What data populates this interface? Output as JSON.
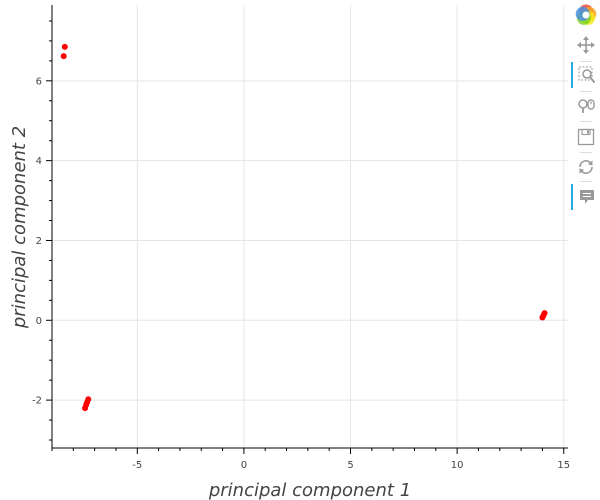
{
  "chart_data": {
    "type": "scatter",
    "xlabel": "principal component 1",
    "ylabel": "principal component 2",
    "xlim": [
      -9.0,
      15.2
    ],
    "ylim": [
      -3.2,
      7.9
    ],
    "xticks": [
      -5,
      0,
      5,
      10,
      15
    ],
    "yticks": [
      -2,
      0,
      2,
      4,
      6
    ],
    "grid": true,
    "point_color": "#ff0000",
    "points": [
      {
        "x": -8.4,
        "y": 6.85
      },
      {
        "x": -8.45,
        "y": 6.62
      },
      {
        "x": -7.3,
        "y": -1.98
      },
      {
        "x": -7.35,
        "y": -2.05
      },
      {
        "x": -7.4,
        "y": -2.12
      },
      {
        "x": -7.45,
        "y": -2.2
      },
      {
        "x": 14.1,
        "y": 0.18
      },
      {
        "x": 14.05,
        "y": 0.12
      },
      {
        "x": 14.0,
        "y": 0.07
      }
    ]
  },
  "toolbar": {
    "tools": [
      {
        "name": "bokeh-logo-icon",
        "interactable": false,
        "active": false
      },
      {
        "name": "pan-tool-icon",
        "interactable": true,
        "active": false
      },
      {
        "name": "box-zoom-tool-icon",
        "interactable": true,
        "active": true
      },
      {
        "name": "wheel-zoom-tool-icon",
        "interactable": true,
        "active": false
      },
      {
        "name": "save-tool-icon",
        "interactable": true,
        "active": false
      },
      {
        "name": "reset-tool-icon",
        "interactable": true,
        "active": false
      },
      {
        "name": "hover-tool-icon",
        "interactable": true,
        "active": true
      }
    ]
  }
}
